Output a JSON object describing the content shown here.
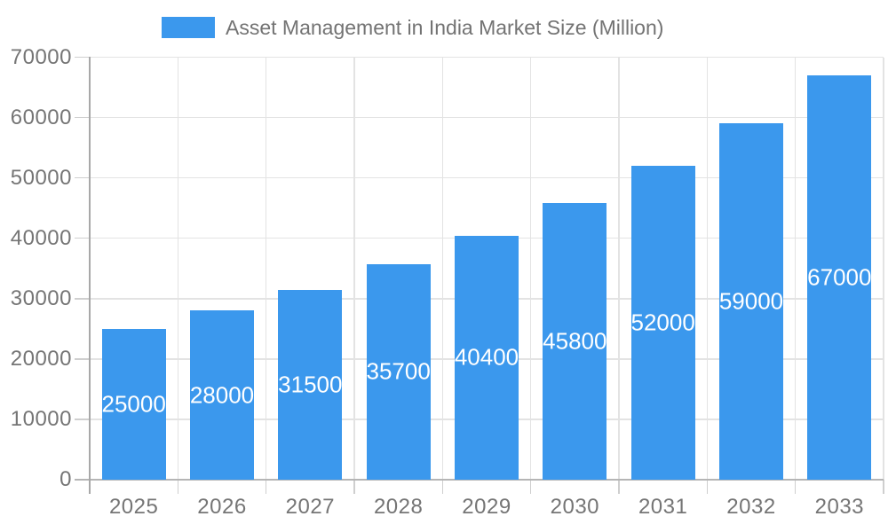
{
  "legend": {
    "position": "top-center",
    "items": [
      {
        "label": "Asset Management in India Market Size (Million)",
        "swatch_color": "#3b98ed"
      }
    ]
  },
  "chart_data": {
    "type": "bar",
    "title": "Asset Management in India Market Size (Million)",
    "series": [
      {
        "name": "Asset Management in India Market Size (Million)",
        "values": [
          25000,
          28000,
          31500,
          35700,
          40400,
          45800,
          52000,
          59000,
          67000
        ]
      }
    ],
    "categories": [
      "2025",
      "2026",
      "2027",
      "2028",
      "2029",
      "2030",
      "2031",
      "2032",
      "2033"
    ],
    "value_labels": [
      "25000",
      "28000",
      "31500",
      "35700",
      "40400",
      "45800",
      "52000",
      "59000",
      "67000"
    ],
    "xlabel": "",
    "ylabel": "",
    "ylim": [
      0,
      70000
    ],
    "ytick_step": 10000,
    "ytick_labels": [
      "0",
      "10000",
      "20000",
      "30000",
      "40000",
      "50000",
      "60000",
      "70000"
    ],
    "grid": true,
    "value_label_position": "inside-center",
    "colors": {
      "bar": "#3b98ed",
      "value_label": "#ffffff",
      "axis_text": "#757575",
      "legend_text": "#737373",
      "gridline": "#e3e3e3",
      "y_axis_line": "#a8a8a8",
      "x_axis_line": "#b5b5b5",
      "tick": "#cfcfcf",
      "background": "#ffffff"
    }
  }
}
